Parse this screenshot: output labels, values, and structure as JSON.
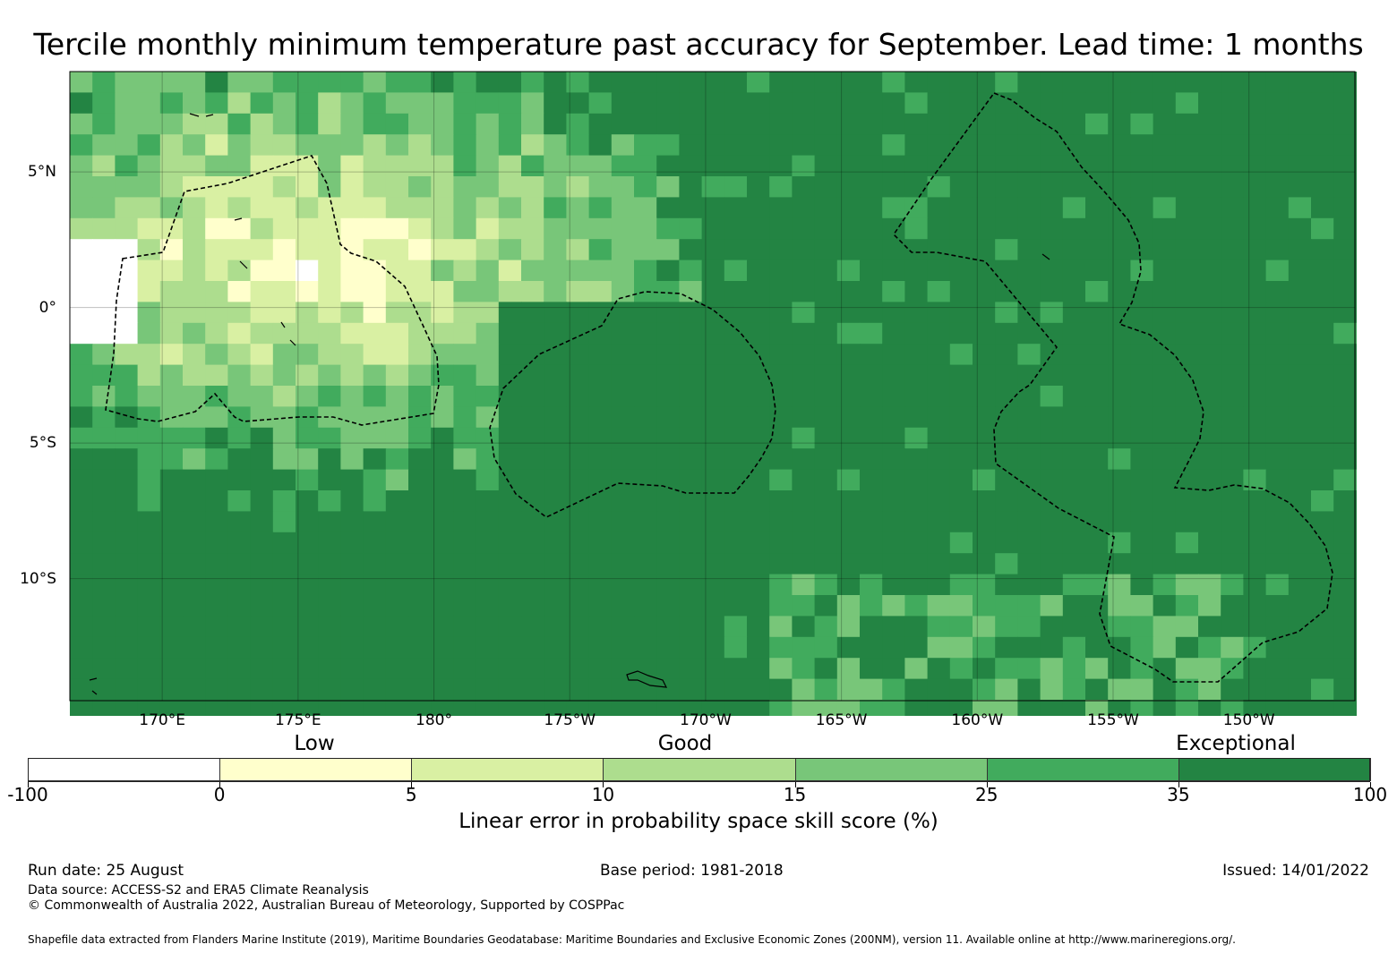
{
  "title": "Tercile monthly minimum temperature past accuracy for September. Lead time: 1 months",
  "map": {
    "lon_labels": [
      "170°E",
      "175°E",
      "180°",
      "175°W",
      "170°W",
      "165°W",
      "160°W",
      "155°W",
      "150°W"
    ],
    "lon_values": [
      170,
      175,
      180,
      185,
      190,
      195,
      200,
      205,
      210
    ],
    "lat_labels": [
      "5°N",
      "0°",
      "5°S",
      "10°S"
    ],
    "lat_values": [
      5,
      0,
      -5,
      -10
    ],
    "lon_range": [
      166.6,
      213.9
    ],
    "lat_range": [
      -14.5,
      8.7
    ],
    "gridlines": true
  },
  "legend": {
    "categories": [
      "Low",
      "Good",
      "Exceptional"
    ],
    "bins": [
      {
        "from": "-100",
        "to": "0",
        "color": "#ffffff"
      },
      {
        "from": "0",
        "to": "5",
        "color": "#ffffcc"
      },
      {
        "from": "5",
        "to": "10",
        "color": "#d9f0a3"
      },
      {
        "from": "10",
        "to": "15",
        "color": "#addd8e"
      },
      {
        "from": "15",
        "to": "25",
        "color": "#78c679"
      },
      {
        "from": "25",
        "to": "35",
        "color": "#41ab5d"
      },
      {
        "from": "35",
        "to": "100",
        "color": "#238443"
      }
    ],
    "ticks": [
      "-100",
      "0",
      "5",
      "10",
      "15",
      "25",
      "35",
      "100"
    ],
    "title": "Linear error in probability space skill score (%)"
  },
  "footer": {
    "run_date": "Run date: 25 August",
    "base_period": "Base period: 1981-2018",
    "issued": "Issued: 14/01/2022",
    "data_source": "Data source: ACCESS-S2 and ERA5 Climate Reanalysis",
    "copyright": "© Commonwealth of Australia 2022, Australian Bureau of Meteorology, Supported by COSPPac",
    "shapefile": "Shapefile data extracted from Flanders Marine Institute (2019), Maritime Boundaries Geodatabase: Maritime Boundaries and Exclusive Economic Zones (200NM), version 11. Available online at http://www.marineregions.org/."
  }
}
